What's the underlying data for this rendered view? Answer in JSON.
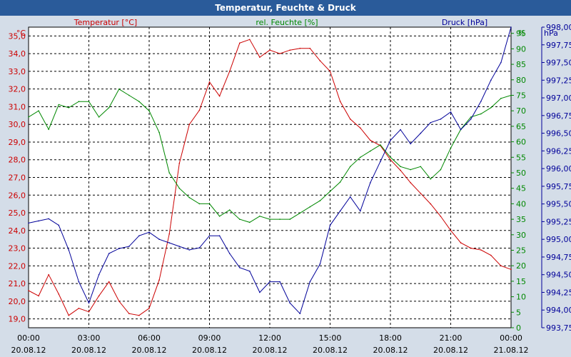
{
  "window": {
    "title": "Temperatur, Feuchte & Druck"
  },
  "colors": {
    "temperature": "#cc0000",
    "humidity": "#008800",
    "pressure": "#000099",
    "background": "#d4dde8",
    "plot": "#ffffff",
    "titlebar": "#2a5b9a"
  },
  "chart_data": {
    "type": "line",
    "title": "Temperatur, Feuchte & Druck",
    "x": [
      "00:00",
      "00:30",
      "01:00",
      "01:30",
      "02:00",
      "02:30",
      "03:00",
      "03:30",
      "04:00",
      "04:30",
      "05:00",
      "05:30",
      "06:00",
      "06:30",
      "07:00",
      "07:30",
      "08:00",
      "08:30",
      "09:00",
      "09:30",
      "10:00",
      "10:30",
      "11:00",
      "11:30",
      "12:00",
      "12:30",
      "13:00",
      "13:30",
      "14:00",
      "14:30",
      "15:00",
      "15:30",
      "16:00",
      "16:30",
      "17:00",
      "17:30",
      "18:00",
      "18:30",
      "19:00",
      "19:30",
      "20:00",
      "20:30",
      "21:00",
      "21:30",
      "22:00",
      "22:30",
      "23:00",
      "23:30",
      "24:00"
    ],
    "x_ticks": [
      {
        "time": "00:00",
        "date": "20.08.12"
      },
      {
        "time": "03:00",
        "date": "20.08.12"
      },
      {
        "time": "06:00",
        "date": "20.08.12"
      },
      {
        "time": "09:00",
        "date": "20.08.12"
      },
      {
        "time": "12:00",
        "date": "20.08.12"
      },
      {
        "time": "15:00",
        "date": "20.08.12"
      },
      {
        "time": "18:00",
        "date": "20.08.12"
      },
      {
        "time": "21:00",
        "date": "20.08.12"
      },
      {
        "time": "00:00",
        "date": "21.08.12"
      }
    ],
    "axes": {
      "temperature": {
        "label": "Temperatur [°C]",
        "unit": "°C",
        "ylim": [
          18.5,
          35.5
        ],
        "ticks": [
          "19,0",
          "20,0",
          "21,0",
          "22,0",
          "23,0",
          "24,0",
          "25,0",
          "26,0",
          "27,0",
          "28,0",
          "29,0",
          "30,0",
          "31,0",
          "32,0",
          "33,0",
          "34,0",
          "35,0"
        ]
      },
      "humidity": {
        "label": "rel. Feuchte [%]",
        "unit": "%",
        "ylim": [
          0,
          97
        ],
        "ticks": [
          "0",
          "5",
          "10",
          "15",
          "20",
          "25",
          "30",
          "35",
          "40",
          "45",
          "50",
          "55",
          "60",
          "65",
          "70",
          "75",
          "80",
          "85",
          "90",
          "95"
        ]
      },
      "pressure": {
        "label": "Druck [hPa]",
        "unit": "hPa",
        "ylim": [
          993.75,
          998.0
        ],
        "ticks": [
          "993,75",
          "994,00",
          "994,25",
          "994,50",
          "994,75",
          "995,00",
          "995,25",
          "995,50",
          "995,75",
          "996,00",
          "996,25",
          "996,50",
          "996,75",
          "997,00",
          "997,25",
          "997,50",
          "997,75",
          "998,00"
        ]
      }
    },
    "series": [
      {
        "name": "Temperatur",
        "axis": "temperature",
        "values": [
          20.6,
          20.3,
          21.5,
          20.4,
          19.2,
          19.6,
          19.4,
          20.3,
          21.1,
          20.0,
          19.3,
          19.2,
          19.6,
          21.2,
          23.8,
          27.8,
          30.0,
          30.8,
          32.4,
          31.6,
          33.0,
          34.6,
          34.8,
          33.8,
          34.2,
          34.0,
          34.2,
          34.3,
          34.3,
          33.6,
          33.0,
          31.3,
          30.3,
          29.8,
          29.1,
          28.8,
          28.0,
          27.4,
          26.7,
          26.1,
          25.5,
          24.8,
          24.0,
          23.3,
          23.0,
          22.9,
          22.6,
          22.0,
          21.8
        ]
      },
      {
        "name": "rel. Feuchte",
        "axis": "humidity",
        "values": [
          68,
          70,
          64,
          72,
          71,
          73,
          73,
          68,
          71,
          77,
          75,
          73,
          70,
          63,
          50,
          45,
          42,
          40,
          40,
          36,
          38,
          35,
          34,
          36,
          35,
          35,
          35,
          37,
          39,
          41,
          44,
          47,
          52,
          55,
          57,
          59,
          55,
          52,
          51,
          52,
          48,
          51,
          58,
          64,
          68,
          69,
          71,
          74,
          75
        ]
      },
      {
        "name": "Druck",
        "axis": "pressure",
        "values": [
          995.23,
          995.26,
          995.29,
          995.2,
          994.85,
          994.4,
          994.1,
          994.5,
          994.8,
          994.87,
          994.9,
          995.05,
          995.1,
          995.0,
          994.95,
          994.9,
          994.85,
          994.88,
          995.05,
          995.05,
          994.8,
          994.6,
          994.55,
          994.25,
          994.4,
          994.4,
          994.1,
          993.95,
          994.4,
          994.65,
          995.2,
          995.4,
          995.6,
          995.4,
          995.8,
          996.1,
          996.4,
          996.55,
          996.35,
          996.5,
          996.65,
          996.7,
          996.8,
          996.55,
          996.7,
          996.95,
          997.25,
          997.5,
          998.0
        ]
      }
    ]
  }
}
